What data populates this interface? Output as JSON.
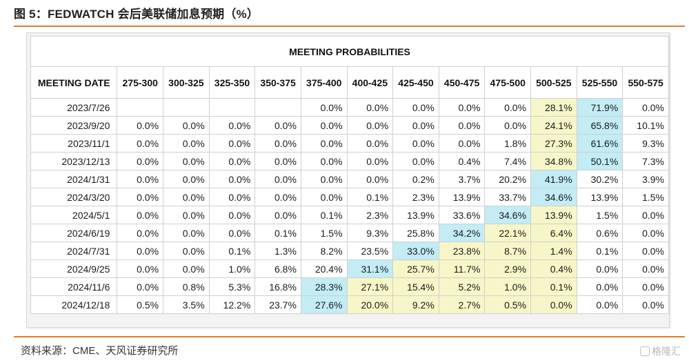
{
  "figure": {
    "title": "图 5：FEDWATCH 会后美联储加息预期（%）",
    "source": "资料来源：CME、天风证券研究所",
    "watermark": "格隆汇"
  },
  "table": {
    "banner": "MEETING PROBABILITIES",
    "date_header": "MEETING DATE",
    "columns": [
      "275-300",
      "300-325",
      "325-350",
      "350-375",
      "375-400",
      "400-425",
      "425-450",
      "450-475",
      "475-500",
      "500-525",
      "525-550",
      "550-575"
    ],
    "colors": {
      "yellow": "#f7f6c8",
      "blue": "#c3ecf5"
    },
    "rows": [
      {
        "date": "2023/7/26",
        "values": [
          "",
          "",
          "",
          "",
          "0.0%",
          "0.0%",
          "0.0%",
          "0.0%",
          "0.0%",
          "28.1%",
          "71.9%",
          "0.0%"
        ],
        "hl": {
          "9": "yellow",
          "10": "blue"
        }
      },
      {
        "date": "2023/9/20",
        "values": [
          "0.0%",
          "0.0%",
          "0.0%",
          "0.0%",
          "0.0%",
          "0.0%",
          "0.0%",
          "0.0%",
          "0.0%",
          "24.1%",
          "65.8%",
          "10.1%"
        ],
        "hl": {
          "9": "yellow",
          "10": "blue"
        }
      },
      {
        "date": "2023/11/1",
        "values": [
          "0.0%",
          "0.0%",
          "0.0%",
          "0.0%",
          "0.0%",
          "0.0%",
          "0.0%",
          "0.0%",
          "1.8%",
          "27.3%",
          "61.6%",
          "9.3%"
        ],
        "hl": {
          "9": "yellow",
          "10": "blue"
        }
      },
      {
        "date": "2023/12/13",
        "values": [
          "0.0%",
          "0.0%",
          "0.0%",
          "0.0%",
          "0.0%",
          "0.0%",
          "0.0%",
          "0.4%",
          "7.4%",
          "34.8%",
          "50.1%",
          "7.3%"
        ],
        "hl": {
          "9": "yellow",
          "10": "blue"
        }
      },
      {
        "date": "2024/1/31",
        "values": [
          "0.0%",
          "0.0%",
          "0.0%",
          "0.0%",
          "0.0%",
          "0.0%",
          "0.2%",
          "3.7%",
          "20.2%",
          "41.9%",
          "30.2%",
          "3.9%"
        ],
        "hl": {
          "9": "blue"
        }
      },
      {
        "date": "2024/3/20",
        "values": [
          "0.0%",
          "0.0%",
          "0.0%",
          "0.0%",
          "0.0%",
          "0.1%",
          "2.3%",
          "13.9%",
          "33.7%",
          "34.6%",
          "13.9%",
          "1.5%"
        ],
        "hl": {
          "9": "blue"
        }
      },
      {
        "date": "2024/5/1",
        "values": [
          "0.0%",
          "0.0%",
          "0.0%",
          "0.0%",
          "0.1%",
          "2.3%",
          "13.9%",
          "33.6%",
          "34.6%",
          "13.9%",
          "1.5%",
          "0.0%"
        ],
        "hl": {
          "8": "blue",
          "9": "yellow"
        }
      },
      {
        "date": "2024/6/19",
        "values": [
          "0.0%",
          "0.0%",
          "0.0%",
          "0.1%",
          "1.5%",
          "9.3%",
          "25.8%",
          "34.2%",
          "22.1%",
          "6.4%",
          "0.6%",
          "0.0%"
        ],
        "hl": {
          "7": "blue",
          "8": "yellow",
          "9": "yellow"
        }
      },
      {
        "date": "2024/7/31",
        "values": [
          "0.0%",
          "0.0%",
          "0.1%",
          "1.3%",
          "8.2%",
          "23.5%",
          "33.0%",
          "23.8%",
          "8.7%",
          "1.4%",
          "0.1%",
          "0.0%"
        ],
        "hl": {
          "6": "blue",
          "7": "yellow",
          "8": "yellow",
          "9": "yellow"
        }
      },
      {
        "date": "2024/9/25",
        "values": [
          "0.0%",
          "0.0%",
          "1.0%",
          "6.8%",
          "20.4%",
          "31.1%",
          "25.7%",
          "11.7%",
          "2.9%",
          "0.4%",
          "0.0%",
          "0.0%"
        ],
        "hl": {
          "5": "blue",
          "6": "yellow",
          "7": "yellow",
          "8": "yellow",
          "9": "yellow"
        }
      },
      {
        "date": "2024/11/6",
        "values": [
          "0.0%",
          "0.8%",
          "5.3%",
          "16.8%",
          "28.3%",
          "27.1%",
          "15.4%",
          "5.2%",
          "1.0%",
          "0.1%",
          "0.0%",
          "0.0%"
        ],
        "hl": {
          "4": "blue",
          "5": "yellow",
          "6": "yellow",
          "7": "yellow",
          "8": "yellow",
          "9": "yellow"
        }
      },
      {
        "date": "2024/12/18",
        "values": [
          "0.5%",
          "3.5%",
          "12.2%",
          "23.7%",
          "27.6%",
          "20.0%",
          "9.2%",
          "2.7%",
          "0.5%",
          "0.0%",
          "0.0%",
          "0.0%"
        ],
        "hl": {
          "4": "blue",
          "5": "yellow",
          "6": "yellow",
          "7": "yellow",
          "8": "yellow",
          "9": "yellow"
        }
      }
    ]
  }
}
